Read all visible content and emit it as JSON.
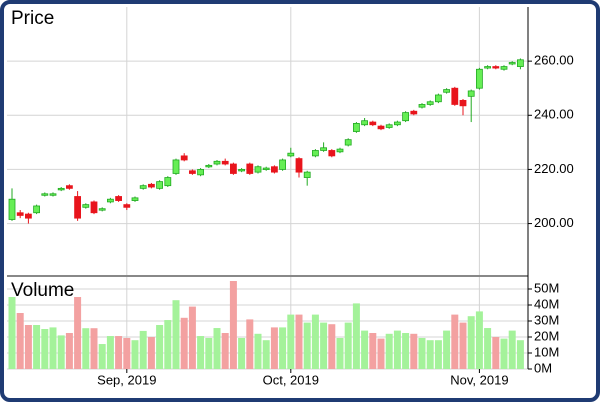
{
  "chart_data": [
    {
      "type": "candlestick",
      "title": "Price",
      "categories": [
        null,
        null,
        null,
        null,
        null,
        null,
        null,
        null,
        null,
        null,
        null,
        null,
        null,
        null,
        "Sep, 2019",
        null,
        null,
        null,
        null,
        null,
        null,
        null,
        null,
        null,
        null,
        null,
        null,
        null,
        null,
        null,
        null,
        null,
        null,
        null,
        "Oct, 2019",
        null,
        null,
        null,
        null,
        null,
        null,
        null,
        null,
        null,
        null,
        null,
        null,
        null,
        null,
        null,
        null,
        null,
        null,
        null,
        null,
        null,
        null,
        "Nov, 2019",
        null,
        null,
        null,
        null,
        null
      ],
      "open": [
        201.5,
        204,
        203.5,
        204,
        210.5,
        210.5,
        212.5,
        214,
        210,
        206,
        208,
        205,
        208,
        210,
        207,
        208.5,
        213,
        214.5,
        213,
        214,
        218.5,
        225,
        219.5,
        218,
        221,
        222,
        223,
        222,
        219.5,
        222,
        219,
        220,
        221,
        220,
        225,
        224,
        217,
        225,
        227,
        227,
        226.5,
        229,
        234,
        236.5,
        237.5,
        236,
        235.5,
        236.5,
        238,
        241.5,
        243,
        244,
        245,
        248.5,
        250,
        245.5,
        247,
        250,
        257.5,
        258,
        257,
        259,
        258
      ],
      "high": [
        213,
        205,
        204,
        207,
        211.5,
        211.5,
        213.5,
        214.5,
        212,
        207.5,
        208.5,
        206,
        209.5,
        210.5,
        207.5,
        210,
        214.5,
        215,
        216,
        217.5,
        224,
        226,
        220,
        220.5,
        222,
        223.5,
        224,
        222.5,
        220.5,
        222.5,
        221.5,
        221,
        221.5,
        224,
        228,
        224.5,
        219.5,
        227.5,
        230,
        227.5,
        228,
        231.5,
        237.5,
        239,
        238,
        236.5,
        237,
        238,
        241.5,
        242,
        244.5,
        245.5,
        248,
        250,
        250.5,
        246,
        249.5,
        257.5,
        258.5,
        258.5,
        258.5,
        260,
        261
      ],
      "low": [
        201,
        202,
        200,
        203.5,
        210,
        210,
        212,
        212.5,
        201,
        205.5,
        203.5,
        204.5,
        207.5,
        208,
        205,
        208,
        212.5,
        213,
        212.5,
        213.5,
        218,
        223,
        218,
        217.5,
        220.5,
        221.5,
        221.5,
        218,
        219,
        218,
        218.5,
        219.5,
        218.5,
        219.5,
        224.5,
        217,
        214,
        224.5,
        226.5,
        224.5,
        226,
        228.5,
        233.5,
        236,
        236,
        234.5,
        235,
        236,
        237.5,
        240,
        242.5,
        243.5,
        244.5,
        248,
        243.5,
        240,
        237.5,
        249.5,
        257,
        257,
        256.5,
        258.5,
        257
      ],
      "close": [
        209,
        203,
        202,
        206.5,
        211,
        211,
        213,
        213,
        202,
        207,
        204,
        205.5,
        209,
        208.5,
        206,
        209.5,
        214,
        213.5,
        215.5,
        217,
        223.5,
        223.5,
        218.5,
        220,
        221.5,
        223,
        222,
        218.5,
        220,
        218.5,
        221,
        220.5,
        219,
        223.5,
        226,
        219,
        219,
        227,
        228,
        225,
        227.5,
        231,
        237,
        238,
        236.5,
        235,
        236.5,
        237.5,
        241,
        240.5,
        244,
        245,
        247.5,
        249.5,
        244,
        243.5,
        249,
        257,
        258,
        257.5,
        258,
        259.5,
        260.5
      ],
      "ylim": [
        181,
        280
      ],
      "yticks": [
        {
          "value": 200,
          "label": "200.00"
        },
        {
          "value": 220,
          "label": "220.00"
        },
        {
          "value": 240,
          "label": "240.00"
        },
        {
          "value": 260,
          "label": "260.00"
        }
      ],
      "up_color": "#66ee55",
      "down_color": "#e8141c",
      "grid": true
    },
    {
      "type": "bar",
      "title": "Volume",
      "values": [
        45,
        35,
        27.5,
        27.5,
        25,
        26,
        21,
        22.5,
        45,
        25.5,
        25.5,
        15.6,
        20.6,
        20.6,
        19.4,
        18,
        23.8,
        20,
        27.5,
        30.6,
        43,
        32,
        39,
        20.6,
        19.4,
        25.6,
        22.5,
        55,
        19.4,
        31,
        22,
        18,
        26,
        26,
        34,
        34,
        29,
        34,
        29,
        28,
        19.4,
        29,
        41,
        24,
        22.5,
        19,
        22,
        24,
        22.5,
        22,
        19.4,
        18,
        18,
        24,
        34,
        29,
        33,
        36,
        25.6,
        20,
        19,
        24,
        18
      ],
      "ylim": [
        0,
        57.5
      ],
      "yticks": [
        {
          "value": 0,
          "label": "0M"
        },
        {
          "value": 10,
          "label": "10M"
        },
        {
          "value": 20,
          "label": "20M"
        },
        {
          "value": 30,
          "label": "30M"
        },
        {
          "value": 40,
          "label": "40M"
        },
        {
          "value": 50,
          "label": "50M"
        }
      ],
      "up_color": "#a4f29a",
      "down_color": "#f3a1a1",
      "grid": true
    }
  ]
}
